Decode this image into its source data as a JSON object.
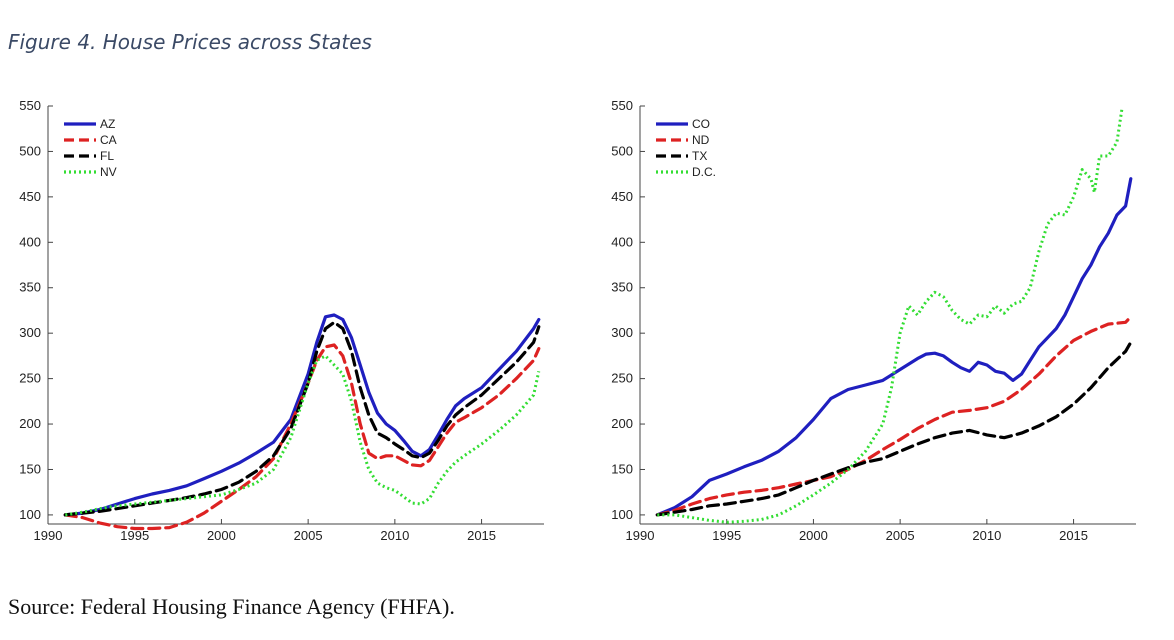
{
  "figure": {
    "title": "Figure 4. House Prices across States",
    "source": "Source: Federal Housing Finance Agency (FHFA)."
  },
  "chart_data": [
    {
      "type": "line",
      "title": "",
      "xlabel": "",
      "ylabel": "",
      "xlim": [
        1990,
        2018.6
      ],
      "ylim": [
        90,
        550
      ],
      "xticks": [
        1990,
        1995,
        2000,
        2005,
        2010,
        2015
      ],
      "yticks": [
        100,
        150,
        200,
        250,
        300,
        350,
        400,
        450,
        500,
        550
      ],
      "legend_position": "top-left",
      "grid": false,
      "series": [
        {
          "name": "AZ",
          "color": "#1f1fbf",
          "style": "solid",
          "x": [
            1991,
            1992,
            1993,
            1994,
            1995,
            1996,
            1997,
            1998,
            1999,
            2000,
            2001,
            2002,
            2003,
            2004,
            2005,
            2005.5,
            2006,
            2006.5,
            2007,
            2007.5,
            2008,
            2008.5,
            2009,
            2009.5,
            2010,
            2010.5,
            2011,
            2011.5,
            2012,
            2012.5,
            2013,
            2013.5,
            2014,
            2015,
            2016,
            2017,
            2018,
            2018.3
          ],
          "y": [
            100,
            102,
            106,
            112,
            118,
            123,
            127,
            132,
            140,
            148,
            157,
            168,
            180,
            205,
            255,
            290,
            318,
            320,
            315,
            295,
            265,
            235,
            212,
            200,
            193,
            182,
            170,
            165,
            172,
            188,
            205,
            220,
            228,
            240,
            260,
            280,
            305,
            315
          ]
        },
        {
          "name": "CA",
          "color": "#dd2222",
          "style": "dashed",
          "x": [
            1991,
            1992,
            1993,
            1994,
            1995,
            1996,
            1997,
            1998,
            1999,
            2000,
            2001,
            2002,
            2003,
            2004,
            2005,
            2005.5,
            2006,
            2006.5,
            2007,
            2007.5,
            2008,
            2008.5,
            2009,
            2009.5,
            2010,
            2010.5,
            2011,
            2011.5,
            2012,
            2012.5,
            2013,
            2013.5,
            2014,
            2015,
            2016,
            2017,
            2018,
            2018.3
          ],
          "y": [
            100,
            97,
            91,
            87,
            85,
            85,
            86,
            92,
            102,
            115,
            128,
            142,
            162,
            200,
            245,
            270,
            285,
            287,
            275,
            245,
            200,
            168,
            162,
            165,
            165,
            160,
            155,
            154,
            160,
            175,
            190,
            202,
            207,
            218,
            232,
            250,
            270,
            283
          ]
        },
        {
          "name": "FL",
          "color": "#000000",
          "style": "dashed",
          "x": [
            1991,
            1992,
            1993,
            1994,
            1995,
            1996,
            1997,
            1998,
            1999,
            2000,
            2001,
            2002,
            2003,
            2004,
            2005,
            2005.5,
            2006,
            2006.5,
            2007,
            2007.5,
            2008,
            2008.5,
            2009,
            2009.5,
            2010,
            2010.5,
            2011,
            2011.5,
            2012,
            2012.5,
            2013,
            2013.5,
            2014,
            2015,
            2016,
            2017,
            2018,
            2018.3
          ],
          "y": [
            100,
            102,
            104,
            107,
            110,
            113,
            116,
            119,
            123,
            128,
            136,
            148,
            165,
            195,
            245,
            280,
            305,
            312,
            305,
            280,
            240,
            210,
            190,
            185,
            178,
            172,
            165,
            163,
            168,
            182,
            198,
            210,
            218,
            232,
            250,
            268,
            290,
            307
          ]
        },
        {
          "name": "NV",
          "color": "#33dd33",
          "style": "dotted",
          "x": [
            1991,
            1992,
            1993,
            1994,
            1995,
            1996,
            1997,
            1998,
            1999,
            2000,
            2001,
            2002,
            2003,
            2004,
            2005,
            2005.5,
            2006,
            2006.5,
            2007,
            2007.5,
            2008,
            2008.5,
            2009,
            2009.5,
            2010,
            2010.5,
            2011,
            2011.5,
            2012,
            2012.5,
            2013,
            2013.5,
            2014,
            2015,
            2016,
            2017,
            2018,
            2018.3
          ],
          "y": [
            100,
            103,
            107,
            110,
            112,
            114,
            116,
            118,
            120,
            122,
            128,
            135,
            150,
            185,
            245,
            270,
            275,
            265,
            255,
            225,
            180,
            150,
            135,
            130,
            127,
            120,
            113,
            112,
            118,
            135,
            148,
            158,
            165,
            178,
            193,
            210,
            232,
            258
          ]
        }
      ]
    },
    {
      "type": "line",
      "title": "",
      "xlabel": "",
      "ylabel": "",
      "xlim": [
        1990,
        2018.6
      ],
      "ylim": [
        90,
        550
      ],
      "xticks": [
        1990,
        1995,
        2000,
        2005,
        2010,
        2015
      ],
      "yticks": [
        100,
        150,
        200,
        250,
        300,
        350,
        400,
        450,
        500,
        550
      ],
      "legend_position": "top-left",
      "grid": false,
      "series": [
        {
          "name": "CO",
          "color": "#1f1fbf",
          "style": "solid",
          "x": [
            1991,
            1992,
            1993,
            1994,
            1995,
            1996,
            1997,
            1998,
            1999,
            2000,
            2001,
            2002,
            2003,
            2004,
            2005,
            2006,
            2006.5,
            2007,
            2007.5,
            2008,
            2008.5,
            2009,
            2009.5,
            2010,
            2010.5,
            2011,
            2011.5,
            2012,
            2012.5,
            2013,
            2013.5,
            2014,
            2014.5,
            2015,
            2015.5,
            2016,
            2016.5,
            2017,
            2017.5,
            2018,
            2018.3
          ],
          "y": [
            100,
            108,
            120,
            138,
            145,
            153,
            160,
            170,
            185,
            205,
            228,
            238,
            243,
            248,
            260,
            272,
            277,
            278,
            275,
            268,
            262,
            258,
            268,
            265,
            258,
            256,
            248,
            255,
            270,
            285,
            295,
            305,
            320,
            340,
            360,
            375,
            395,
            410,
            430,
            440,
            470
          ]
        },
        {
          "name": "ND",
          "color": "#dd2222",
          "style": "dashed",
          "x": [
            1991,
            1992,
            1993,
            1994,
            1995,
            1996,
            1997,
            1998,
            1999,
            2000,
            2001,
            2002,
            2003,
            2004,
            2005,
            2006,
            2007,
            2008,
            2009,
            2010,
            2011,
            2012,
            2013,
            2014,
            2015,
            2016,
            2017,
            2018,
            2018.3
          ],
          "y": [
            100,
            105,
            112,
            118,
            122,
            125,
            127,
            130,
            134,
            138,
            142,
            150,
            160,
            172,
            183,
            195,
            205,
            213,
            215,
            218,
            225,
            238,
            255,
            275,
            292,
            302,
            310,
            312,
            318
          ]
        },
        {
          "name": "TX",
          "color": "#000000",
          "style": "dashed",
          "x": [
            1991,
            1992,
            1993,
            1994,
            1995,
            1996,
            1997,
            1998,
            1999,
            2000,
            2001,
            2002,
            2003,
            2004,
            2005,
            2006,
            2007,
            2008,
            2009,
            2010,
            2011,
            2012,
            2013,
            2014,
            2015,
            2016,
            2017,
            2018,
            2018.3
          ],
          "y": [
            100,
            103,
            106,
            110,
            112,
            115,
            118,
            122,
            130,
            138,
            145,
            152,
            158,
            162,
            170,
            178,
            185,
            190,
            193,
            188,
            185,
            190,
            198,
            208,
            222,
            240,
            262,
            280,
            290
          ]
        },
        {
          "name": "D.C.",
          "color": "#33dd33",
          "style": "dotted",
          "x": [
            1991,
            1992,
            1993,
            1994,
            1995,
            1996,
            1997,
            1998,
            1999,
            2000,
            2001,
            2002,
            2003,
            2004,
            2004.5,
            2005,
            2005.5,
            2006,
            2006.5,
            2007,
            2007.5,
            2008,
            2008.5,
            2009,
            2009.5,
            2010,
            2010.5,
            2011,
            2011.5,
            2012,
            2012.5,
            2013,
            2013.5,
            2014,
            2014.5,
            2015,
            2015.5,
            2016,
            2016.2,
            2016.5,
            2017,
            2017.5,
            2017.8
          ],
          "y": [
            100,
            100,
            97,
            94,
            92,
            93,
            95,
            100,
            110,
            122,
            135,
            150,
            170,
            200,
            240,
            300,
            330,
            320,
            335,
            345,
            340,
            325,
            315,
            310,
            320,
            318,
            330,
            322,
            332,
            335,
            350,
            390,
            420,
            432,
            430,
            450,
            480,
            470,
            455,
            495,
            495,
            510,
            548
          ]
        }
      ]
    }
  ]
}
